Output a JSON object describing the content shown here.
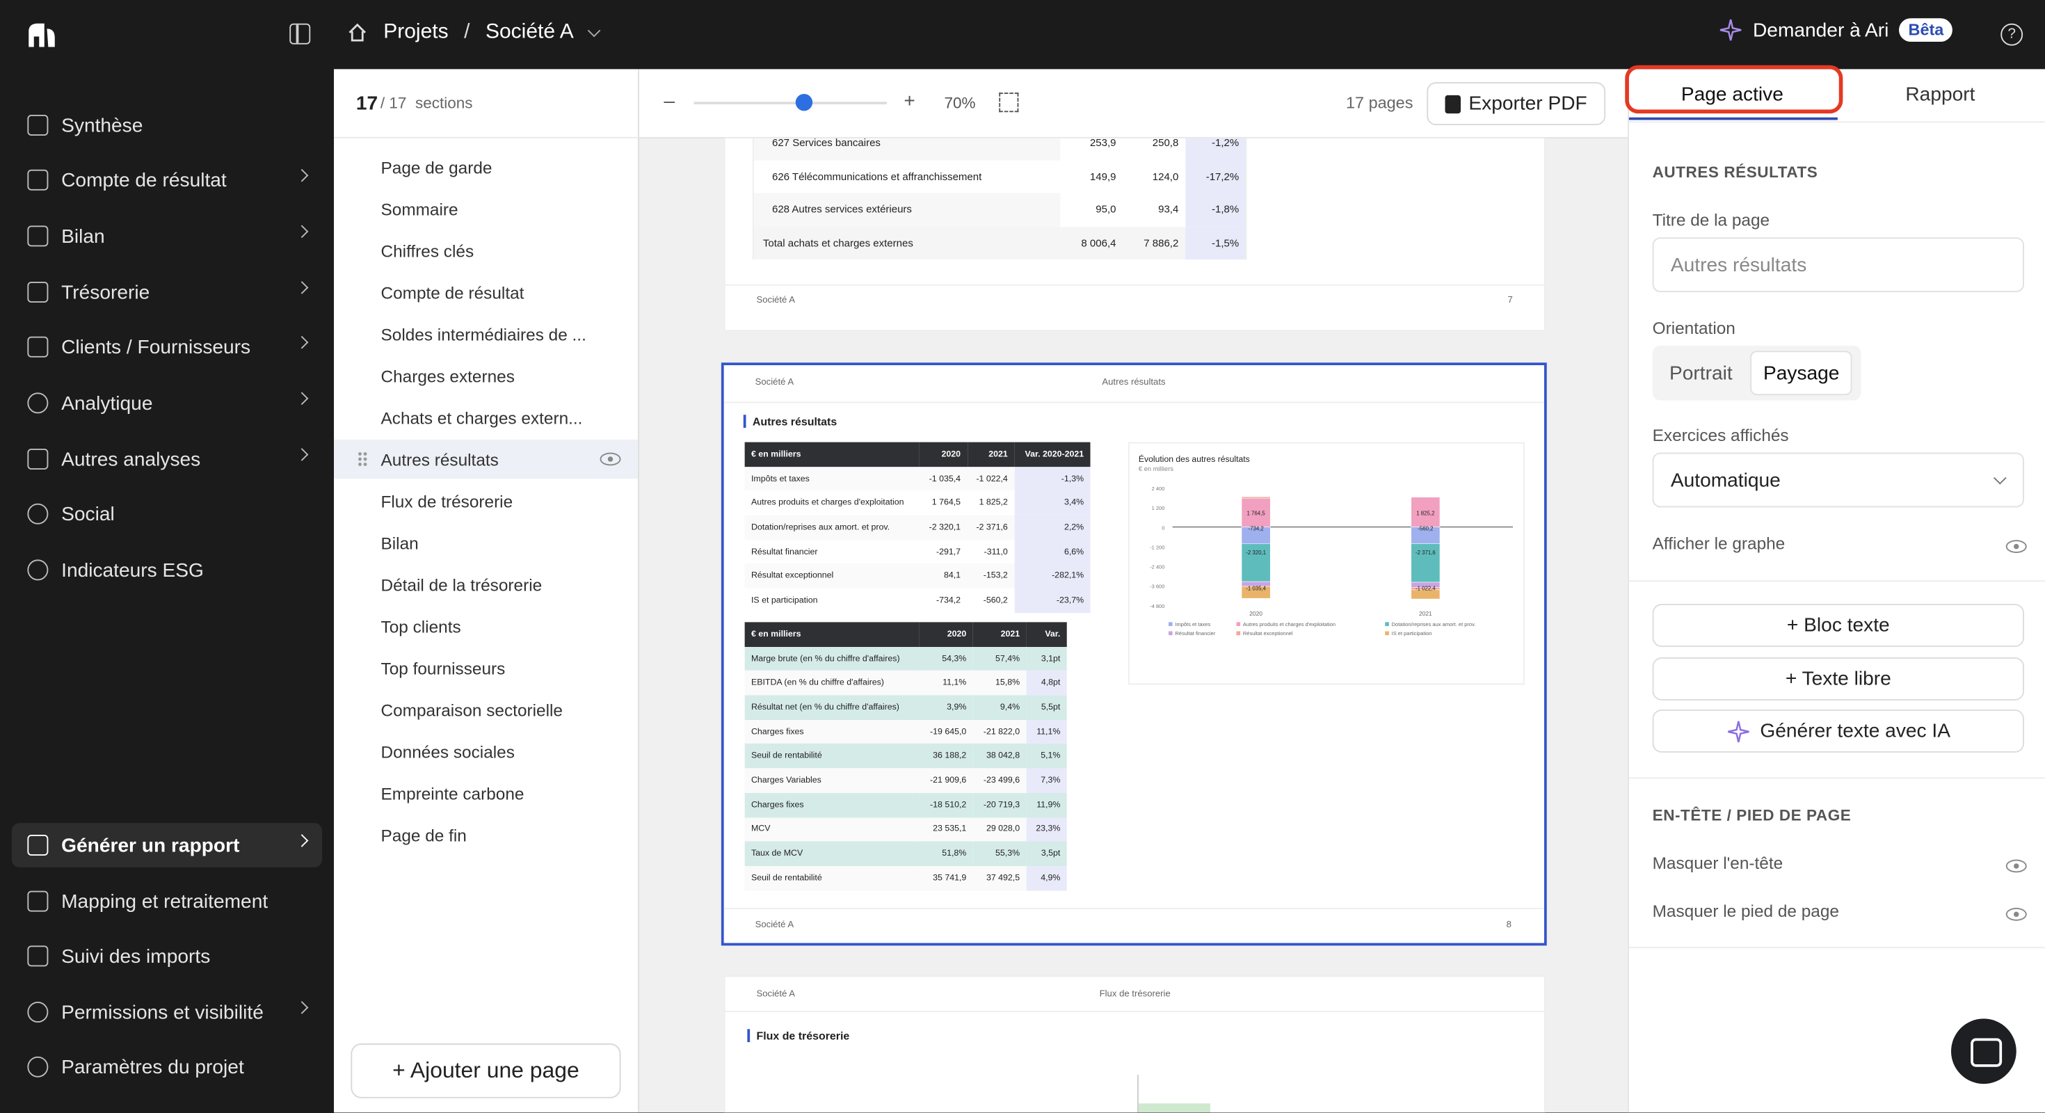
{
  "topbar": {
    "crumb_home": "Projets",
    "crumb_sep": "/",
    "crumb_project": "Société A",
    "ask": "Demander à Ari",
    "beta": "Bêta",
    "help": "?"
  },
  "sidebar": {
    "items": [
      "Synthèse",
      "Compte de résultat",
      "Bilan",
      "Trésorerie",
      "Clients / Fournisseurs",
      "Analytique",
      "Autres analyses",
      "Social",
      "Indicateurs ESG"
    ],
    "bottom": [
      "Générer un rapport",
      "Mapping et retraitement",
      "Suivi des imports",
      "Permissions et visibilité",
      "Paramètres du projet"
    ]
  },
  "sections": {
    "current": "17",
    "total": "/ 17",
    "label": "sections",
    "items": [
      "Page de garde",
      "Sommaire",
      "Chiffres clés",
      "Compte de résultat",
      "Soldes intermédiaires de ...",
      "Charges externes",
      "Achats et charges extern...",
      "Autres résultats",
      "Flux de trésorerie",
      "Bilan",
      "Détail de la trésorerie",
      "Top clients",
      "Top fournisseurs",
      "Comparaison sectorielle",
      "Données sociales",
      "Empreinte carbone",
      "Page de fin"
    ],
    "add_page": "+ Ajouter une page"
  },
  "toolbar": {
    "minus": "–",
    "plus": "+",
    "zoom": "70%",
    "zoom_value": 0.57,
    "pages": "17 pages",
    "export": "Exporter PDF"
  },
  "preview": {
    "p7": {
      "rows": [
        [
          "627 Services bancaires",
          "253,9",
          "250,8",
          "-1,2%"
        ],
        [
          "626 Télécommunications et affranchissement",
          "149,9",
          "124,0",
          "-17,2%"
        ],
        [
          "628 Autres services extérieurs",
          "95,0",
          "93,4",
          "-1,8%"
        ],
        [
          "Total achats et charges externes",
          "8 006,4",
          "7 886,2",
          "-1,5%"
        ]
      ],
      "footer_company": "Société A",
      "footer_num": "7"
    },
    "p8": {
      "company": "Société A",
      "header_title": "Autres résultats",
      "section_title": "Autres résultats",
      "t1_head": [
        "€ en milliers",
        "2020",
        "2021",
        "Var. 2020-2021"
      ],
      "t1_rows": [
        [
          "Impôts et taxes",
          "-1 035,4",
          "-1 022,4",
          "-1,3%"
        ],
        [
          "Autres produits et charges d'exploitation",
          "1 764,5",
          "1 825,2",
          "3,4%"
        ],
        [
          "Dotation/reprises aux amort. et prov.",
          "-2 320,1",
          "-2 371,6",
          "2,2%"
        ],
        [
          "Résultat financier",
          "-291,7",
          "-311,0",
          "6,6%"
        ],
        [
          "Résultat exceptionnel",
          "84,1",
          "-153,2",
          "-282,1%"
        ],
        [
          "IS et participation",
          "-734,2",
          "-560,2",
          "-23,7%"
        ]
      ],
      "t2_head": [
        "€ en milliers",
        "2020",
        "2021",
        "Var."
      ],
      "t2_rows": [
        [
          "Marge brute (en % du chiffre d'affaires)",
          "54,3%",
          "57,4%",
          "3,1pt"
        ],
        [
          "EBITDA (en % du chiffre d'affaires)",
          "11,1%",
          "15,8%",
          "4,8pt"
        ],
        [
          "Résultat net (en % du chiffre d'affaires)",
          "3,9%",
          "9,4%",
          "5,5pt"
        ],
        [
          "Charges fixes",
          "-19 645,0",
          "-21 822,0",
          "11,1%"
        ],
        [
          "Seuil de rentabilité",
          "36 188,2",
          "38 042,8",
          "5,1%"
        ],
        [
          "Charges Variables",
          "-21 909,6",
          "-23 499,6",
          "7,3%"
        ],
        [
          "Charges fixes",
          "-18 510,2",
          "-20 719,3",
          "11,9%"
        ],
        [
          "MCV",
          "23 535,1",
          "29 028,0",
          "23,3%"
        ],
        [
          "Taux de MCV",
          "51,8%",
          "55,3%",
          "3,5pt"
        ],
        [
          "Seuil de rentabilité",
          "35 741,9",
          "37 492,5",
          "4,9%"
        ]
      ],
      "footer_num": "8"
    },
    "p9": {
      "company": "Société A",
      "header_title": "Flux de trésorerie",
      "section_title": "Flux de trésorerie"
    }
  },
  "chart_data": {
    "type": "bar",
    "title": "Évolution des autres résultats",
    "subtitle": "€ en milliers",
    "categories": [
      "2020",
      "2021"
    ],
    "ylim": [
      -4800,
      2400
    ],
    "yticks": [
      "2 400",
      "1 200",
      "0",
      "-1 200",
      "-2 400",
      "-3 600",
      "-4 800"
    ],
    "series": [
      {
        "name": "Impôts et taxes",
        "color": "#9fb0ee",
        "values": [
          -1035.4,
          -1022.4
        ]
      },
      {
        "name": "Autres produits et charges d'exploitation",
        "color": "#f2a0c0",
        "values": [
          1764.5,
          1825.2
        ]
      },
      {
        "name": "Dotation/reprises aux amort. et prov.",
        "color": "#5fbcbc",
        "values": [
          -2320.1,
          -2371.6
        ]
      },
      {
        "name": "Résultat financier",
        "color": "#c9a4e3",
        "values": [
          -291.7,
          -311.0
        ]
      },
      {
        "name": "Résultat exceptionnel",
        "color": "#f0a79a",
        "values": [
          84.1,
          -153.2
        ]
      },
      {
        "name": "IS et participation",
        "color": "#e9b46a",
        "values": [
          -734.2,
          -560.2
        ]
      }
    ],
    "labels": [
      [
        "1 764,5",
        "-734,2",
        "-2 320,1",
        "-1 035,4"
      ],
      [
        "1 825,2",
        "-560,2",
        "-2 371,6",
        "-1 022,4"
      ]
    ]
  },
  "right": {
    "tab_active": "Page active",
    "tab_report": "Rapport",
    "section": "AUTRES RÉSULTATS",
    "title_label": "Titre de la page",
    "title_placeholder": "Autres résultats",
    "orientation_label": "Orientation",
    "portrait": "Portrait",
    "paysage": "Paysage",
    "exercices_label": "Exercices affichés",
    "exercices_value": "Automatique",
    "show_graph": "Afficher le graphe",
    "bloc_texte": "+ Bloc texte",
    "texte_libre": "+ Texte libre",
    "generer": "Générer texte avec IA",
    "header_section": "EN-TÊTE / PIED DE PAGE",
    "hide_header": "Masquer l'en-tête",
    "hide_footer": "Masquer le pied de page"
  },
  "colors": {
    "accent": "#2d4db3",
    "highlight": "#e53923",
    "sidebar_bg": "#1b1b1c"
  }
}
